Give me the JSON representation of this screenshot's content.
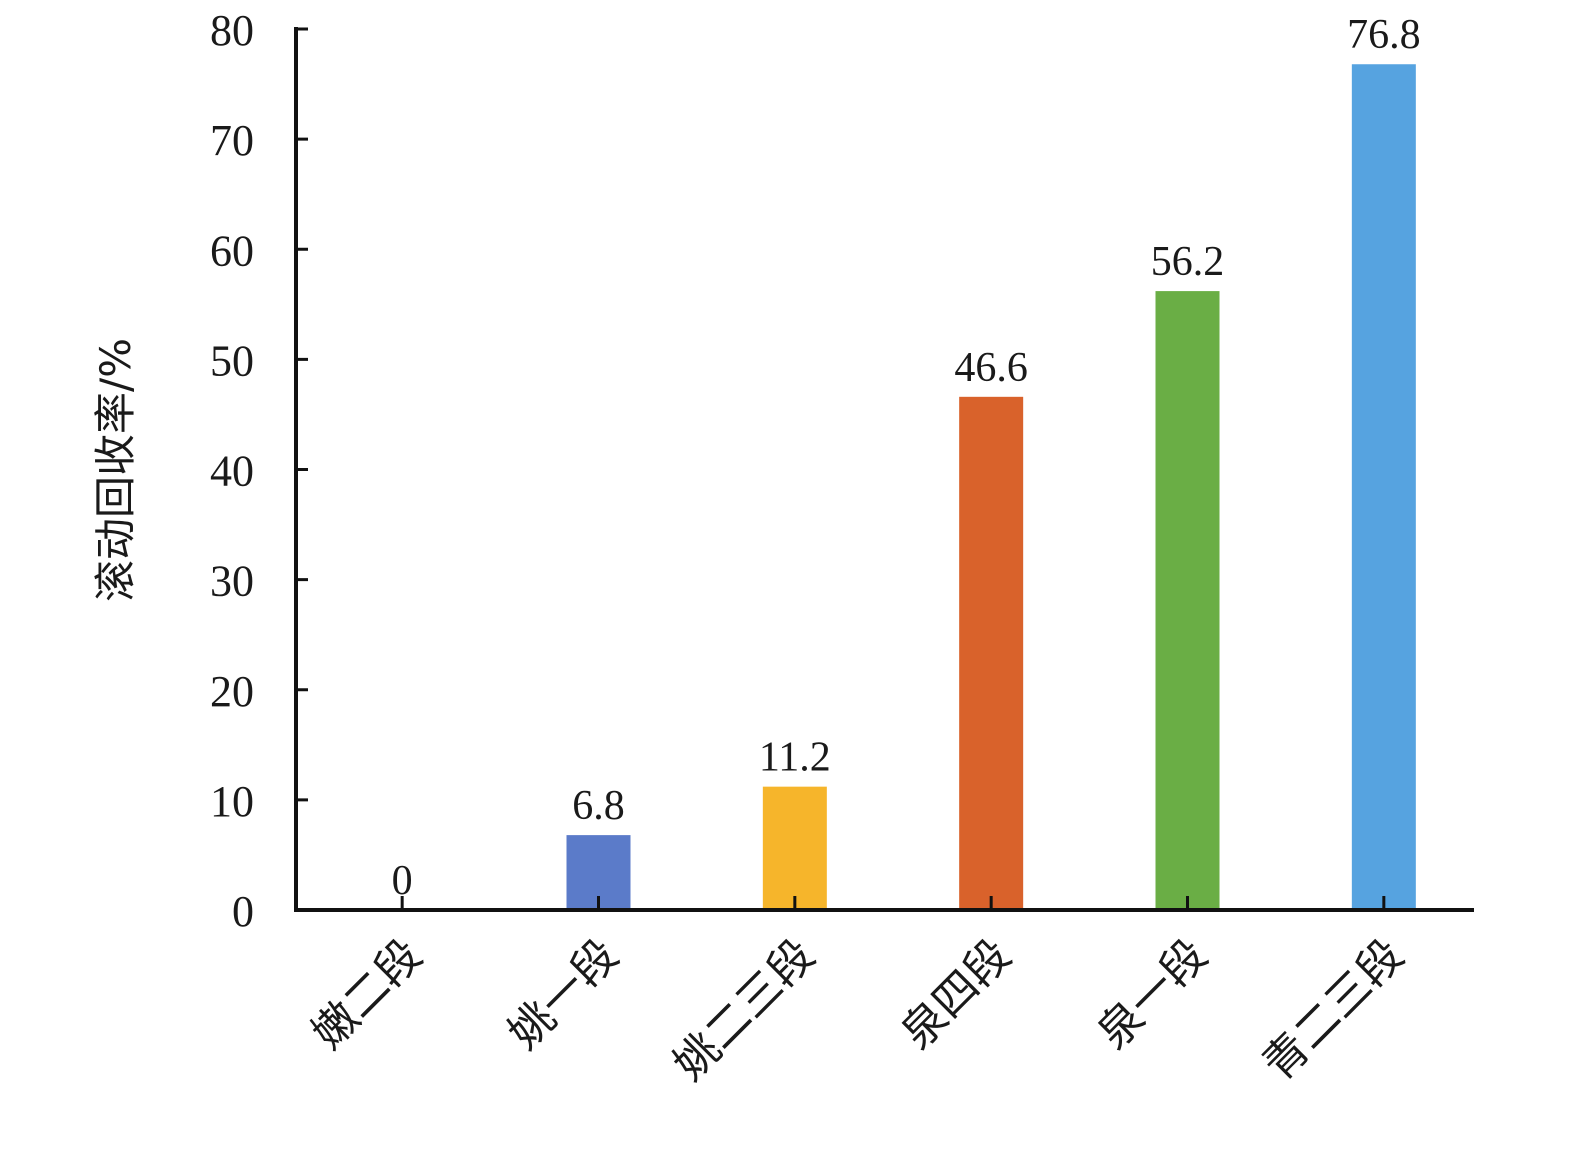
{
  "chart_data": {
    "type": "bar",
    "categories": [
      "嫩二段",
      "姚一段",
      "姚二三段",
      "泉四段",
      "泉一段",
      "青二三段"
    ],
    "values": [
      0,
      6.8,
      11.2,
      46.6,
      56.2,
      76.8
    ],
    "data_labels": [
      "0",
      "6.8",
      "11.2",
      "46.6",
      "56.2",
      "76.8"
    ],
    "colors": [
      "#4472c4",
      "#5b7bc9",
      "#f6b52b",
      "#d9622b",
      "#6aae45",
      "#56a3e0"
    ],
    "title": "",
    "xlabel": "",
    "ylabel": "滚动回收率/%",
    "ylim": [
      0,
      80
    ],
    "yticks": [
      "0",
      "10",
      "20",
      "30",
      "40",
      "50",
      "60",
      "70",
      "80"
    ],
    "grid": false,
    "legend": "none"
  }
}
